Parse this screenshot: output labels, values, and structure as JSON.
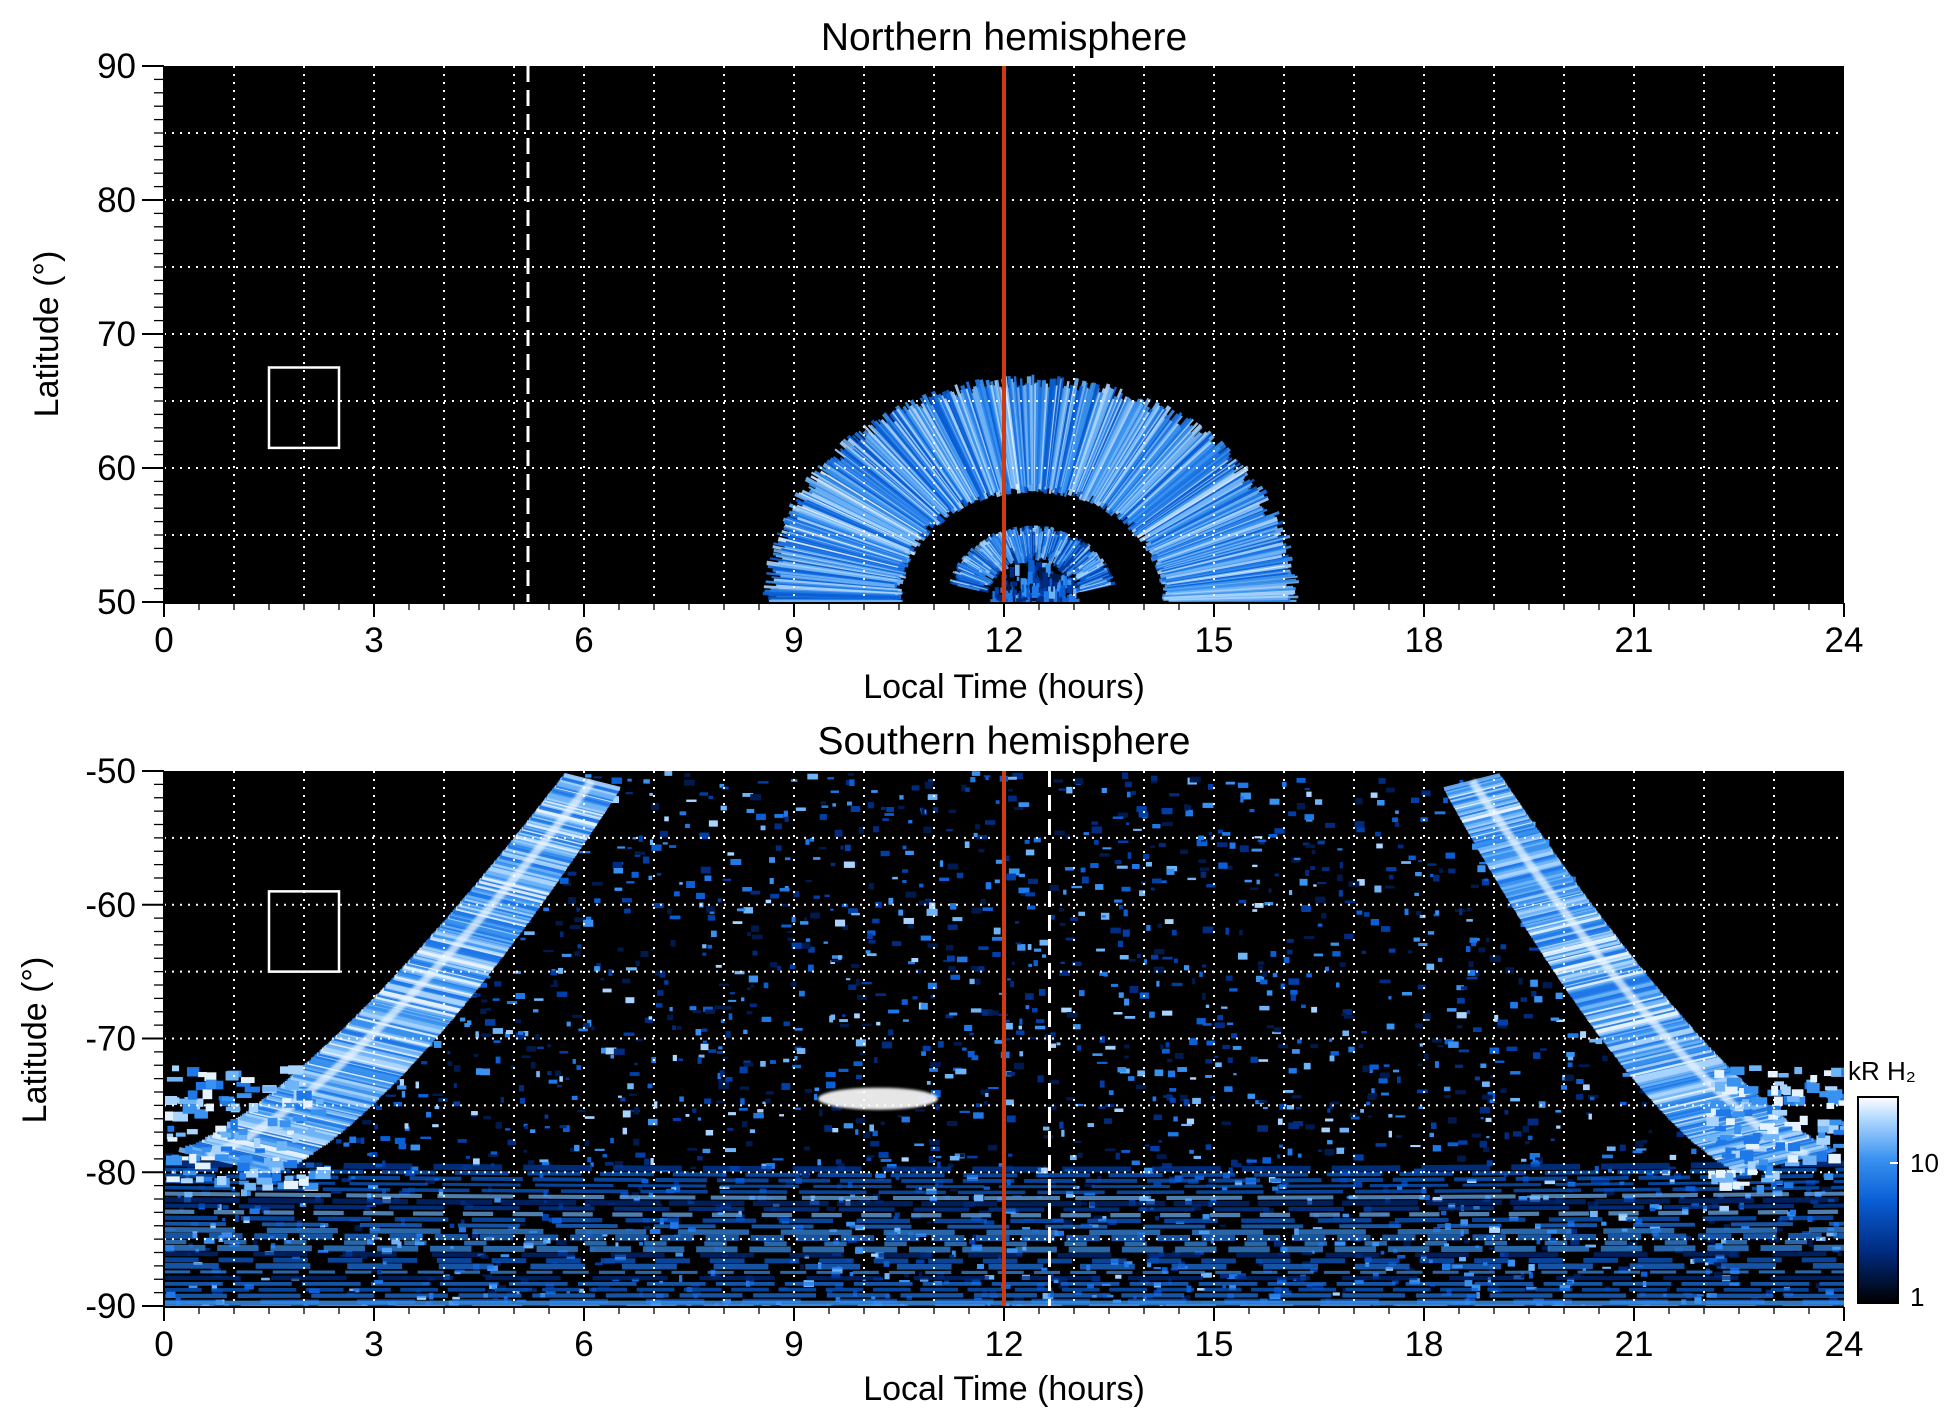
{
  "chart_data": [
    {
      "type": "heatmap",
      "title": "Northern hemisphere",
      "xlabel": "Local Time (hours)",
      "ylabel": "Latitude (°)",
      "xlim": [
        0,
        24
      ],
      "ylim": [
        50,
        90
      ],
      "xticks": [
        0,
        3,
        6,
        9,
        12,
        15,
        18,
        21,
        24
      ],
      "yticks": [
        50,
        60,
        70,
        80,
        90
      ],
      "xgrid": [
        1,
        2,
        3,
        4,
        5,
        6,
        7,
        8,
        9,
        10,
        11,
        12,
        13,
        14,
        15,
        16,
        17,
        18,
        19,
        20,
        21,
        22,
        23
      ],
      "ygrid": [
        55,
        60,
        65,
        70,
        75,
        80,
        85
      ],
      "grid": true,
      "background": "#000000",
      "noon_line": {
        "x": 12,
        "color": "#d03a10"
      },
      "dashed_line": {
        "x": 5.2
      },
      "box": {
        "x": [
          1.5,
          2.5
        ],
        "y": [
          61.5,
          67.5
        ]
      },
      "auroral_oval": {
        "x_range": [
          8.6,
          16.3
        ],
        "center_x": 12.4,
        "outer_top_lat": 67,
        "inner_top_lat": 58.5,
        "inner_oval_top_lat": 55
      }
    },
    {
      "type": "heatmap",
      "title": "Southern hemisphere",
      "xlabel": "Local Time (hours)",
      "ylabel": "Latitude (°)",
      "xlim": [
        0,
        24
      ],
      "ylim": [
        -90,
        -50
      ],
      "xticks": [
        0,
        3,
        6,
        9,
        12,
        15,
        18,
        21,
        24
      ],
      "yticks": [
        -90,
        -80,
        -70,
        -60,
        -50
      ],
      "xgrid": [
        1,
        2,
        3,
        4,
        5,
        6,
        7,
        8,
        9,
        10,
        11,
        12,
        13,
        14,
        15,
        16,
        17,
        18,
        19,
        20,
        21,
        22,
        23
      ],
      "ygrid": [
        -55,
        -60,
        -65,
        -70,
        -75,
        -80,
        -85
      ],
      "grid": true,
      "background": "#000000",
      "noon_line": {
        "x": 12,
        "color": "#d03a10"
      },
      "dashed_line": {
        "x": 12.65
      },
      "box": {
        "x": [
          1.5,
          2.5
        ],
        "y": [
          -65,
          -59
        ]
      },
      "bright_arcs": [
        {
          "x_from": 0.3,
          "y_from": -78,
          "x_to": 5.8,
          "y_to": -50
        },
        {
          "x_from": 19.0,
          "y_from": -50,
          "x_to": 23.8,
          "y_to": -78
        }
      ],
      "bright_spot": {
        "x": 10.2,
        "y": -74.5
      }
    }
  ],
  "colorbar": {
    "unit_label": "kR H₂",
    "ticks": [
      "10",
      "1"
    ],
    "scale": "log",
    "colors": [
      "#000000",
      "#002b80",
      "#0a5fd6",
      "#3a92f0",
      "#a8d4ff",
      "#ffffff"
    ]
  }
}
